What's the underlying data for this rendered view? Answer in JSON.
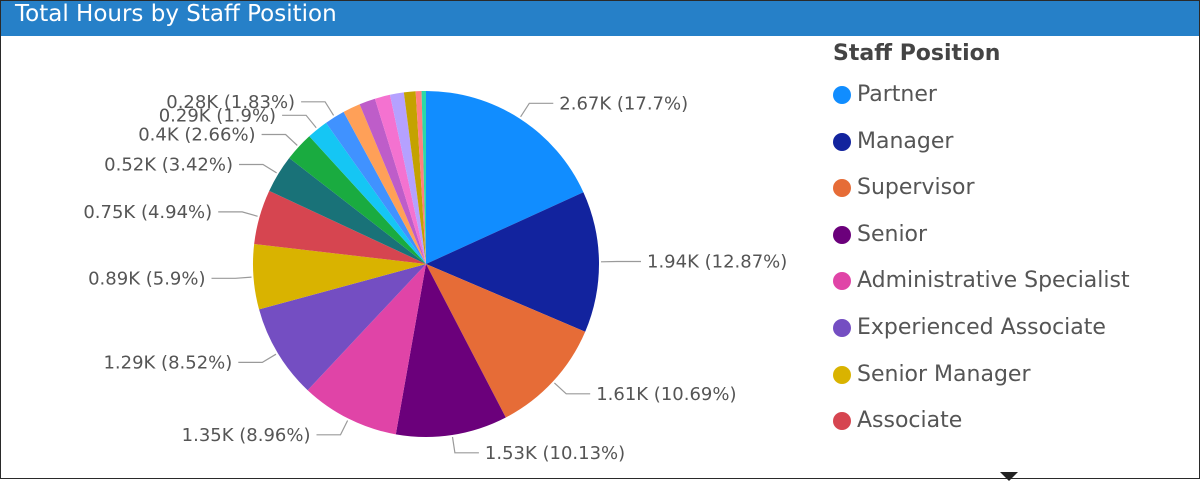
{
  "header": {
    "title": "Total Hours by Staff Position"
  },
  "legend": {
    "title": "Staff Position"
  },
  "chart_data": {
    "type": "pie",
    "legend_position": "right",
    "legend_title": "Staff Position",
    "slices": [
      {
        "name": "Partner",
        "value": 2.67,
        "label": "2.67K (17.7%)",
        "color": "#118dff"
      },
      {
        "name": "Manager",
        "value": 1.94,
        "label": "1.94K (12.87%)",
        "color": "#12239e"
      },
      {
        "name": "Supervisor",
        "value": 1.61,
        "label": "1.61K (10.69%)",
        "color": "#e66c37"
      },
      {
        "name": "Senior",
        "value": 1.53,
        "label": "1.53K (10.13%)",
        "color": "#6b007b"
      },
      {
        "name": "Administrative Specialist",
        "value": 1.35,
        "label": "1.35K (8.96%)",
        "color": "#e044a7"
      },
      {
        "name": "Experienced Associate",
        "value": 1.29,
        "label": "1.29K (8.52%)",
        "color": "#744ec2"
      },
      {
        "name": "Senior Manager",
        "value": 0.89,
        "label": "0.89K (5.9%)",
        "color": "#d9b300"
      },
      {
        "name": "Associate",
        "value": 0.75,
        "label": "0.75K (4.94%)",
        "color": "#d64550"
      },
      {
        "name": "",
        "value": 0.52,
        "label": "0.52K (3.42%)",
        "color": "#197278"
      },
      {
        "name": "",
        "value": 0.4,
        "label": "0.4K (2.66%)",
        "color": "#1aab40"
      },
      {
        "name": "",
        "value": 0.29,
        "label": "0.29K (1.9%)",
        "color": "#15c6f4"
      },
      {
        "name": "",
        "value": 0.28,
        "label": "0.28K (1.83%)",
        "color": "#4092ff"
      },
      {
        "name": "",
        "value": 0.24,
        "label": "",
        "color": "#ffa058"
      },
      {
        "name": "",
        "value": 0.22,
        "label": "",
        "color": "#be5dc9"
      },
      {
        "name": "",
        "value": 0.21,
        "label": "",
        "color": "#f472d0"
      },
      {
        "name": "",
        "value": 0.19,
        "label": "",
        "color": "#b5a1ff"
      },
      {
        "name": "",
        "value": 0.16,
        "label": "",
        "color": "#c4a200"
      },
      {
        "name": "",
        "value": 0.08,
        "label": "",
        "color": "#ff8080"
      },
      {
        "name": "",
        "value": 0.06,
        "label": "",
        "color": "#2bd9a7"
      }
    ]
  }
}
